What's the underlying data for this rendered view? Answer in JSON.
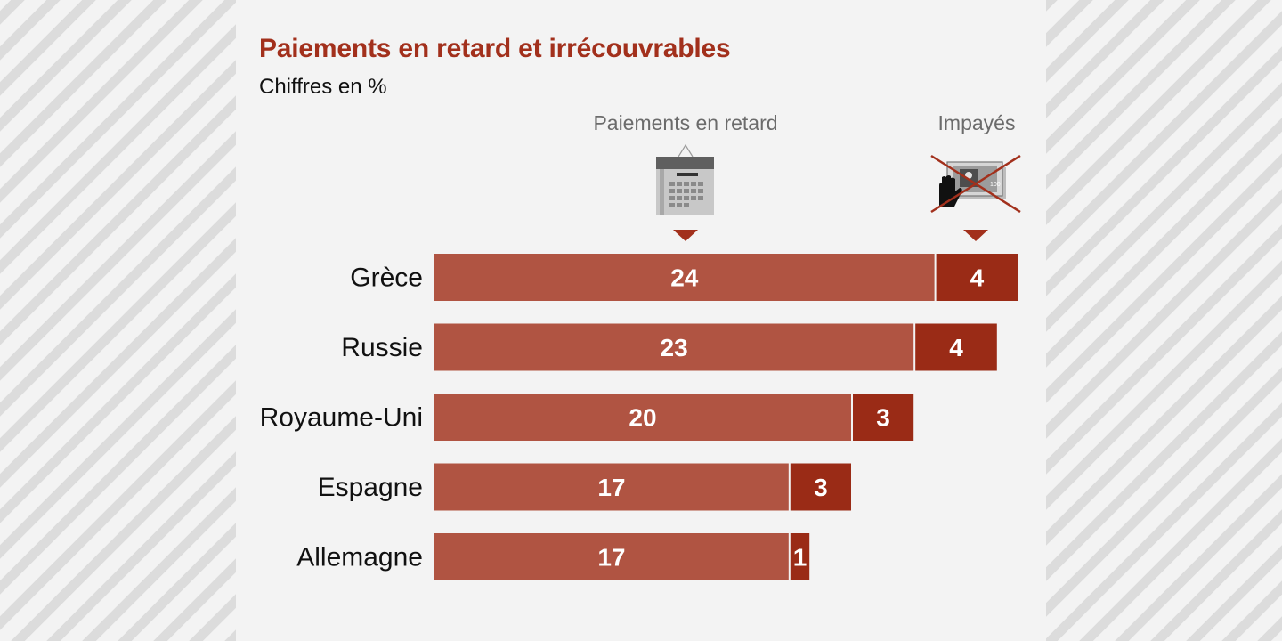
{
  "header": {
    "title": "Paiements en retard et irrécouvrables",
    "subtitle": "Chiffres en %"
  },
  "legend": {
    "late_label": "Paiements en retard",
    "unpaid_label": "Impayés",
    "late_icon": "calendar-icon",
    "unpaid_icon": "crossed-out-banknote-icon"
  },
  "colors": {
    "late": "#b05442",
    "unpaid": "#9a2b16",
    "title": "#a2301c",
    "background": "#f3f3f3"
  },
  "chart_data": {
    "type": "bar",
    "orientation": "horizontal",
    "stacked": true,
    "title": "Paiements en retard et irrécouvrables",
    "subtitle": "Chiffres en %",
    "categories": [
      "Grèce",
      "Russie",
      "Royaume-Uni",
      "Espagne",
      "Allemagne"
    ],
    "series": [
      {
        "name": "Paiements en retard",
        "values": [
          24,
          23,
          20,
          17,
          17
        ]
      },
      {
        "name": "Impayés",
        "values": [
          4,
          4,
          3,
          3,
          1
        ]
      }
    ],
    "xlim": [
      0,
      28
    ],
    "legend_position": "top",
    "grid": false
  }
}
